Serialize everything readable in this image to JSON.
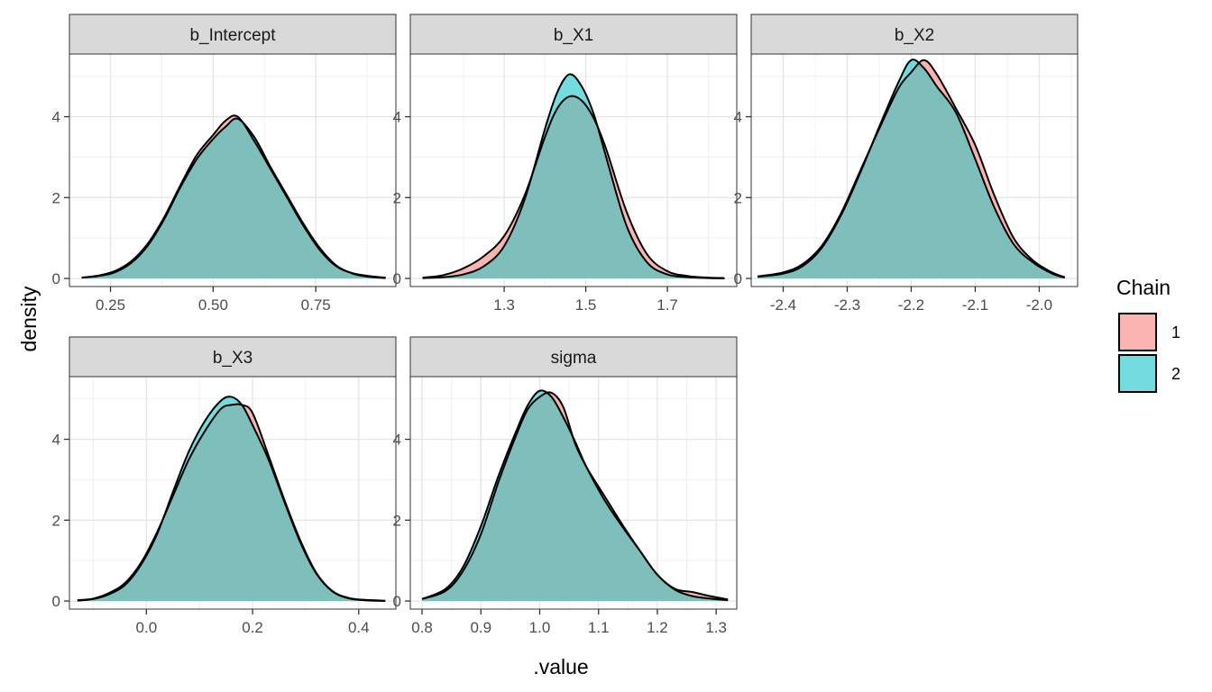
{
  "chart_data": {
    "type": "area",
    "facet_layout": "2 rows x 3 columns",
    "xlabel": ".value",
    "ylabel": "density",
    "grid": true,
    "legend": {
      "title": "Chain",
      "placement": "right",
      "entries": [
        {
          "label": "1",
          "color": "#F8766D"
        },
        {
          "label": "2",
          "color": "#00BFC4"
        }
      ]
    },
    "overlap_fill": "#7FBFBB",
    "panels": [
      {
        "strip": "b_Intercept",
        "xlim": [
          0.15,
          0.945
        ],
        "ylim": [
          -0.2,
          5.55
        ],
        "x_breaks": [
          0.25,
          0.5,
          0.75
        ],
        "x_tick_labels": [
          "0.25",
          "0.50",
          "0.75"
        ],
        "y_breaks": [
          0,
          2,
          4
        ],
        "y_tick_labels": [
          "0",
          "2",
          "4"
        ],
        "series": [
          {
            "name": "1",
            "x": [
              0.18,
              0.22,
              0.26,
              0.3,
              0.34,
              0.38,
              0.42,
              0.46,
              0.5,
              0.53,
              0.56,
              0.6,
              0.64,
              0.68,
              0.72,
              0.76,
              0.8,
              0.84,
              0.88,
              0.92
            ],
            "y": [
              0.02,
              0.07,
              0.18,
              0.42,
              0.85,
              1.5,
              2.3,
              3.05,
              3.55,
              3.9,
              4.0,
              3.4,
              2.7,
              2.0,
              1.3,
              0.7,
              0.3,
              0.13,
              0.06,
              0.02
            ]
          },
          {
            "name": "2",
            "x": [
              0.18,
              0.22,
              0.26,
              0.3,
              0.34,
              0.38,
              0.42,
              0.46,
              0.5,
              0.53,
              0.56,
              0.6,
              0.64,
              0.68,
              0.72,
              0.76,
              0.8,
              0.84,
              0.88,
              0.92
            ],
            "y": [
              0.02,
              0.06,
              0.15,
              0.38,
              0.8,
              1.45,
              2.25,
              2.95,
              3.45,
              3.75,
              3.95,
              3.5,
              2.75,
              2.05,
              1.35,
              0.75,
              0.32,
              0.12,
              0.04,
              0.01
            ]
          }
        ]
      },
      {
        "strip": "b_X1",
        "xlim": [
          1.07,
          1.87
        ],
        "ylim": [
          -0.2,
          5.55
        ],
        "x_breaks": [
          1.3,
          1.5,
          1.7
        ],
        "x_tick_labels": [
          "1.3",
          "1.5",
          "1.7"
        ],
        "y_breaks": [
          0,
          2,
          4
        ],
        "y_tick_labels": [
          "0",
          "2",
          "4"
        ],
        "series": [
          {
            "name": "1",
            "x": [
              1.1,
              1.15,
              1.2,
              1.25,
              1.3,
              1.35,
              1.4,
              1.43,
              1.46,
              1.49,
              1.52,
              1.55,
              1.6,
              1.65,
              1.7,
              1.75,
              1.8,
              1.84
            ],
            "y": [
              0.02,
              0.08,
              0.25,
              0.55,
              1.05,
              2.05,
              3.5,
              4.2,
              4.5,
              4.4,
              3.95,
              3.2,
              1.65,
              0.6,
              0.18,
              0.06,
              0.02,
              0.01
            ]
          },
          {
            "name": "2",
            "x": [
              1.1,
              1.15,
              1.2,
              1.25,
              1.3,
              1.35,
              1.4,
              1.43,
              1.46,
              1.49,
              1.52,
              1.55,
              1.6,
              1.65,
              1.7,
              1.75,
              1.8,
              1.84
            ],
            "y": [
              0.01,
              0.03,
              0.1,
              0.3,
              0.8,
              1.95,
              3.7,
              4.6,
              5.05,
              4.75,
              4.05,
              3.0,
              1.3,
              0.4,
              0.1,
              0.03,
              0.01,
              0.0
            ]
          }
        ]
      },
      {
        "strip": "b_X2",
        "xlim": [
          -2.45,
          -1.94
        ],
        "ylim": [
          -0.2,
          5.55
        ],
        "x_breaks": [
          -2.4,
          -2.3,
          -2.2,
          -2.1,
          -2.0
        ],
        "x_tick_labels": [
          "-2.4",
          "-2.3",
          "-2.2",
          "-2.1",
          "-2.0"
        ],
        "y_breaks": [
          0,
          2,
          4
        ],
        "y_tick_labels": [
          "0",
          "2",
          "4"
        ],
        "series": [
          {
            "name": "1",
            "x": [
              -2.44,
              -2.4,
              -2.37,
              -2.34,
              -2.31,
              -2.28,
              -2.25,
              -2.22,
              -2.2,
              -2.18,
              -2.16,
              -2.13,
              -2.1,
              -2.07,
              -2.04,
              -2.01,
              -1.98,
              -1.96
            ],
            "y": [
              0.05,
              0.15,
              0.35,
              0.8,
              1.6,
              2.65,
              3.7,
              4.7,
              5.1,
              5.4,
              5.05,
              4.2,
              3.3,
              2.05,
              1.0,
              0.45,
              0.15,
              0.03
            ]
          },
          {
            "name": "2",
            "x": [
              -2.44,
              -2.4,
              -2.37,
              -2.34,
              -2.31,
              -2.28,
              -2.25,
              -2.22,
              -2.2,
              -2.18,
              -2.16,
              -2.13,
              -2.1,
              -2.07,
              -2.04,
              -2.01,
              -1.98,
              -1.96
            ],
            "y": [
              0.04,
              0.12,
              0.3,
              0.75,
              1.55,
              2.6,
              3.75,
              4.85,
              5.4,
              5.2,
              4.75,
              4.1,
              2.95,
              1.75,
              0.85,
              0.4,
              0.12,
              0.02
            ]
          }
        ]
      },
      {
        "strip": "b_X3",
        "xlim": [
          -0.145,
          0.47
        ],
        "ylim": [
          -0.2,
          5.55
        ],
        "x_breaks": [
          0.0,
          0.2,
          0.4
        ],
        "x_tick_labels": [
          "0.0",
          "0.2",
          "0.4"
        ],
        "y_breaks": [
          0,
          2,
          4
        ],
        "y_tick_labels": [
          "0",
          "2",
          "4"
        ],
        "series": [
          {
            "name": "1",
            "x": [
              -0.13,
              -0.1,
              -0.07,
              -0.04,
              -0.01,
              0.02,
              0.05,
              0.08,
              0.11,
              0.14,
              0.16,
              0.18,
              0.2,
              0.23,
              0.26,
              0.29,
              0.32,
              0.35,
              0.38,
              0.41,
              0.45
            ],
            "y": [
              0.02,
              0.06,
              0.2,
              0.45,
              0.95,
              1.7,
              2.6,
              3.5,
              4.2,
              4.75,
              4.85,
              4.85,
              4.65,
              3.6,
              2.5,
              1.5,
              0.7,
              0.25,
              0.08,
              0.03,
              0.01
            ]
          },
          {
            "name": "2",
            "x": [
              -0.13,
              -0.1,
              -0.07,
              -0.04,
              -0.01,
              0.02,
              0.05,
              0.08,
              0.11,
              0.14,
              0.16,
              0.18,
              0.2,
              0.23,
              0.26,
              0.29,
              0.32,
              0.35,
              0.38,
              0.41,
              0.45
            ],
            "y": [
              0.01,
              0.05,
              0.17,
              0.4,
              0.9,
              1.65,
              2.7,
              3.7,
              4.45,
              4.95,
              5.05,
              4.85,
              4.35,
              3.5,
              2.45,
              1.45,
              0.68,
              0.24,
              0.07,
              0.02,
              0.0
            ]
          }
        ]
      },
      {
        "strip": "sigma",
        "xlim": [
          0.78,
          1.335
        ],
        "ylim": [
          -0.2,
          5.55
        ],
        "x_breaks": [
          0.8,
          0.9,
          1.0,
          1.1,
          1.2,
          1.3
        ],
        "x_tick_labels": [
          "0.8",
          "0.9",
          "1.0",
          "1.1",
          "1.2",
          "1.3"
        ],
        "y_breaks": [
          0,
          2,
          4
        ],
        "y_tick_labels": [
          "0",
          "2",
          "4"
        ],
        "series": [
          {
            "name": "1",
            "x": [
              0.8,
              0.84,
              0.87,
              0.9,
              0.93,
              0.96,
              0.98,
              1.0,
              1.02,
              1.04,
              1.06,
              1.08,
              1.11,
              1.14,
              1.17,
              1.2,
              1.23,
              1.26,
              1.29,
              1.32
            ],
            "y": [
              0.05,
              0.25,
              0.75,
              1.65,
              2.95,
              4.1,
              4.75,
              5.05,
              5.15,
              4.8,
              3.9,
              3.3,
              2.6,
              1.9,
              1.25,
              0.65,
              0.3,
              0.22,
              0.12,
              0.04
            ]
          },
          {
            "name": "2",
            "x": [
              0.8,
              0.84,
              0.87,
              0.9,
              0.93,
              0.96,
              0.98,
              1.0,
              1.02,
              1.04,
              1.06,
              1.08,
              1.11,
              1.14,
              1.17,
              1.2,
              1.23,
              1.26,
              1.29,
              1.32
            ],
            "y": [
              0.05,
              0.3,
              0.85,
              1.85,
              3.1,
              4.2,
              4.85,
              5.2,
              5.05,
              4.55,
              3.95,
              3.3,
              2.5,
              1.85,
              1.25,
              0.65,
              0.28,
              0.12,
              0.06,
              0.02
            ]
          }
        ]
      }
    ]
  }
}
